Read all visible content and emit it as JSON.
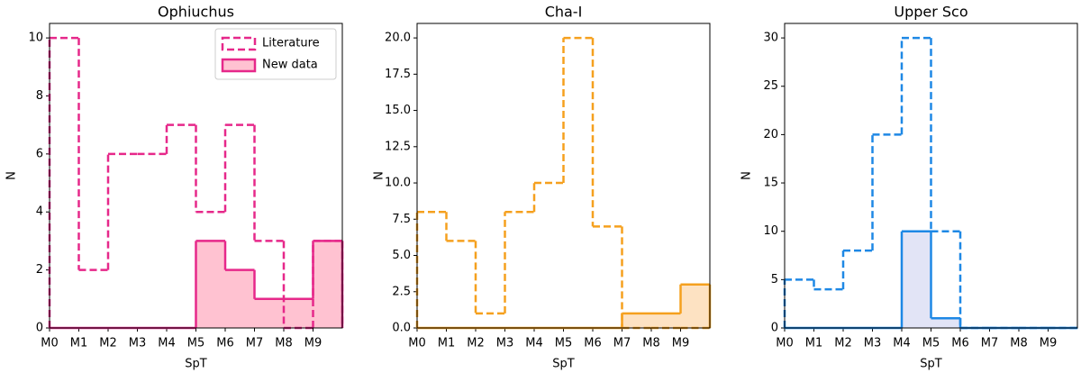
{
  "chart_data": [
    {
      "type": "histogram",
      "title": "Ophiuchus",
      "xlabel": "SpT",
      "ylabel": "N",
      "bins": [
        0,
        1,
        2,
        3,
        4,
        5,
        6,
        7,
        8,
        9,
        10
      ],
      "xlim": [
        0,
        10
      ],
      "xticks": [
        {
          "value": 0,
          "label": "M0"
        },
        {
          "value": 1,
          "label": "M1"
        },
        {
          "value": 2,
          "label": "M2"
        },
        {
          "value": 3,
          "label": "M3"
        },
        {
          "value": 4,
          "label": "M4"
        },
        {
          "value": 5,
          "label": "M5"
        },
        {
          "value": 6,
          "label": "M6"
        },
        {
          "value": 7,
          "label": "M7"
        },
        {
          "value": 8,
          "label": "M8"
        },
        {
          "value": 9,
          "label": "M9"
        }
      ],
      "ylim": [
        0,
        10.5
      ],
      "yticks": [
        0,
        2,
        4,
        6,
        8,
        10
      ],
      "legend": "upper right",
      "series": [
        {
          "name": "Literature",
          "color": "#e6288a",
          "linestyle": "dashed",
          "values": [
            10,
            2,
            6,
            6,
            7,
            4,
            7,
            3,
            0,
            3
          ]
        },
        {
          "name": "New data",
          "color": "#e6288a",
          "fill": "#ffc2d1",
          "linestyle": "solid",
          "values": [
            0,
            0,
            0,
            0,
            0,
            3,
            2,
            1,
            1,
            3
          ]
        }
      ]
    },
    {
      "type": "histogram",
      "title": "Cha-I",
      "xlabel": "SpT",
      "ylabel": "N",
      "bins": [
        0,
        1,
        2,
        3,
        4,
        5,
        6,
        7,
        8,
        9,
        10
      ],
      "xlim": [
        0,
        10
      ],
      "xticks": [
        {
          "value": 0,
          "label": "M0"
        },
        {
          "value": 1,
          "label": "M1"
        },
        {
          "value": 2,
          "label": "M2"
        },
        {
          "value": 3,
          "label": "M3"
        },
        {
          "value": 4,
          "label": "M4"
        },
        {
          "value": 5,
          "label": "M5"
        },
        {
          "value": 6,
          "label": "M6"
        },
        {
          "value": 7,
          "label": "M7"
        },
        {
          "value": 8,
          "label": "M8"
        },
        {
          "value": 9,
          "label": "M9"
        }
      ],
      "ylim": [
        0,
        21
      ],
      "yticks": [
        {
          "value": 0,
          "label": "0.0"
        },
        {
          "value": 2.5,
          "label": "2.5"
        },
        {
          "value": 5,
          "label": "5.0"
        },
        {
          "value": 7.5,
          "label": "7.5"
        },
        {
          "value": 10,
          "label": "10.0"
        },
        {
          "value": 12.5,
          "label": "12.5"
        },
        {
          "value": 15,
          "label": "15.0"
        },
        {
          "value": 17.5,
          "label": "17.5"
        },
        {
          "value": 20,
          "label": "20.0"
        }
      ],
      "series": [
        {
          "color": "#f5a01e",
          "linestyle": "dashed",
          "values": [
            8,
            6,
            1,
            8,
            10,
            20,
            7,
            0,
            0,
            0
          ]
        },
        {
          "color": "#f5a01e",
          "fill": "#fde2c2",
          "linestyle": "solid",
          "values": [
            0,
            0,
            0,
            0,
            0,
            0,
            0,
            1,
            1,
            3
          ]
        }
      ]
    },
    {
      "type": "histogram",
      "title": "Upper Sco",
      "xlabel": "SpT",
      "ylabel": "N",
      "bins": [
        0,
        1,
        2,
        3,
        4,
        5,
        6,
        7,
        8,
        9,
        10
      ],
      "xlim": [
        0,
        10
      ],
      "xticks": [
        {
          "value": 0,
          "label": "M0"
        },
        {
          "value": 1,
          "label": "M1"
        },
        {
          "value": 2,
          "label": "M2"
        },
        {
          "value": 3,
          "label": "M3"
        },
        {
          "value": 4,
          "label": "M4"
        },
        {
          "value": 5,
          "label": "M5"
        },
        {
          "value": 6,
          "label": "M6"
        },
        {
          "value": 7,
          "label": "M7"
        },
        {
          "value": 8,
          "label": "M8"
        },
        {
          "value": 9,
          "label": "M9"
        }
      ],
      "ylim": [
        0,
        31.5
      ],
      "yticks": [
        0,
        5,
        10,
        15,
        20,
        25,
        30
      ],
      "series": [
        {
          "color": "#1e88e5",
          "linestyle": "dashed",
          "values": [
            5,
            4,
            8,
            20,
            30,
            10,
            0,
            0,
            0,
            0
          ]
        },
        {
          "color": "#1e88e5",
          "fill": "#e2e4f6",
          "linestyle": "solid",
          "values": [
            0,
            0,
            0,
            0,
            10,
            1,
            0,
            0,
            0,
            0
          ]
        }
      ]
    }
  ]
}
